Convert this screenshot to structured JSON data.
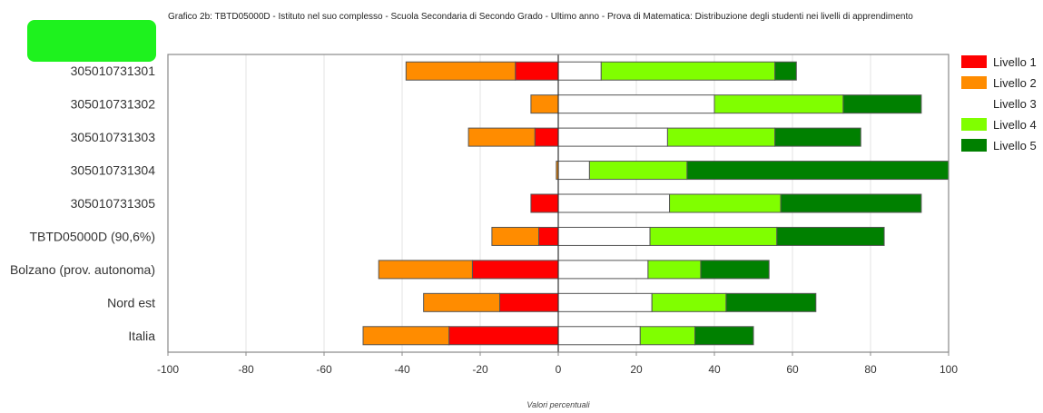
{
  "chart_data": {
    "type": "bar",
    "orientation": "horizontal",
    "stacked": "diverging",
    "title": "Grafico 2b: TBTD05000D - Istituto nel suo complesso - Scuola Secondaria di Secondo Grado - Ultimo anno - Prova di Matematica: Distribuzione degli studenti nei livelli di apprendimento",
    "xlabel": "Valori percentuali",
    "ylabel": "",
    "xlim": [
      -100,
      100
    ],
    "xticks": [
      -100,
      -80,
      -60,
      -40,
      -20,
      0,
      20,
      40,
      60,
      80,
      100
    ],
    "grid": true,
    "legend_position": "right",
    "categories": [
      "305010731301",
      "305010731302",
      "305010731303",
      "305010731304",
      "305010731305",
      "TBTD05000D (90,6%)",
      "Bolzano (prov. autonoma)",
      "Nord est",
      "Italia"
    ],
    "series": [
      {
        "name": "Livello 1",
        "color": "#ff0000",
        "side": "negative",
        "values": [
          11,
          0,
          6,
          0,
          7,
          5,
          22,
          15,
          28
        ]
      },
      {
        "name": "Livello 2",
        "color": "#ff8c00",
        "side": "negative",
        "values": [
          28,
          7,
          17,
          0.5,
          0,
          12,
          24,
          19.5,
          22
        ]
      },
      {
        "name": "Livello 3",
        "color": "#ffffff",
        "side": "positive",
        "values": [
          11,
          40,
          28,
          8,
          28.5,
          23.5,
          23,
          24,
          21
        ]
      },
      {
        "name": "Livello 4",
        "color": "#80ff00",
        "side": "positive",
        "values": [
          44.5,
          33,
          27.5,
          25,
          28.5,
          32.5,
          13.5,
          19,
          14
        ]
      },
      {
        "name": "Livello 5",
        "color": "#008000",
        "side": "positive",
        "values": [
          5.5,
          20,
          22,
          67,
          36,
          27.5,
          17.5,
          23,
          15
        ]
      }
    ]
  }
}
